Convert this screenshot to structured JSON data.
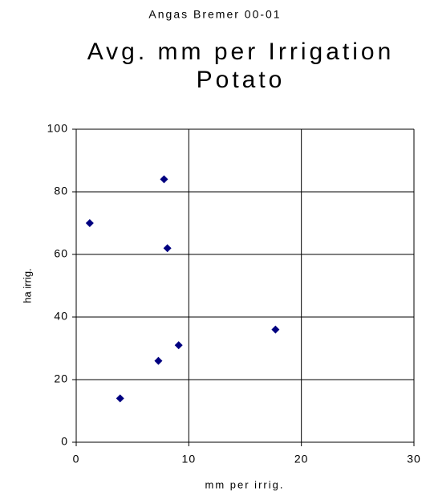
{
  "chart_data": {
    "type": "scatter",
    "supertitle": "Angas Bremer 00-01",
    "title": [
      "Avg. mm per Irrigation",
      "Potato"
    ],
    "x_label": "mm per irrig.",
    "y_label": "ha irrig.",
    "series": [
      {
        "color": "#000080",
        "x": [
          1.2,
          3.9,
          7.3,
          7.8,
          8.1,
          9.1,
          17.7
        ],
        "values": [
          70,
          14,
          26,
          84,
          62,
          31,
          36
        ]
      }
    ],
    "xlim": [
      0,
      30
    ],
    "xticks": [
      0,
      10,
      20,
      30
    ],
    "ylim": [
      0,
      100
    ],
    "yticks": [
      0,
      20,
      40,
      60,
      80,
      100
    ],
    "grid": true
  }
}
